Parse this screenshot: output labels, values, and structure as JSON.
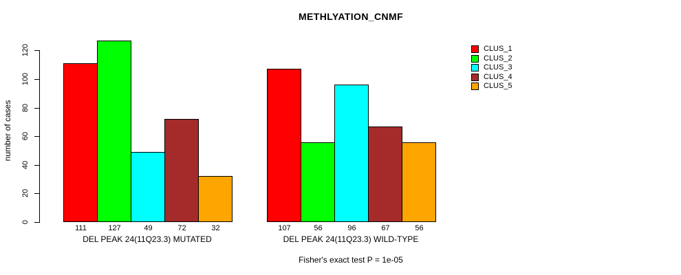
{
  "title": "METHLYATION_CNMF",
  "y_axis": {
    "label": "number of cases",
    "ticks": [
      0,
      20,
      40,
      60,
      80,
      100,
      120
    ]
  },
  "footer": "Fisher's exact test P = 1e-05",
  "legend": {
    "items": [
      {
        "label": "CLUS_1",
        "color": "#FF0000"
      },
      {
        "label": "CLUS_2",
        "color": "#00FF00"
      },
      {
        "label": "CLUS_3",
        "color": "#00FFFF"
      },
      {
        "label": "CLUS_4",
        "color": "#A52A2A"
      },
      {
        "label": "CLUS_5",
        "color": "#FFA500"
      }
    ]
  },
  "chart_data": {
    "type": "bar",
    "title": "METHLYATION_CNMF",
    "ylabel": "number of cases",
    "ylim": [
      0,
      127
    ],
    "yticks": [
      0,
      20,
      40,
      60,
      80,
      100,
      120
    ],
    "grid": false,
    "legend_position": "top-right",
    "bar_value_labels": true,
    "categories": [
      "DEL PEAK 24(11Q23.3) MUTATED",
      "DEL PEAK 24(11Q23.3) WILD-TYPE"
    ],
    "series": [
      {
        "name": "CLUS_1",
        "color": "#FF0000",
        "values": [
          111,
          107
        ]
      },
      {
        "name": "CLUS_2",
        "color": "#00FF00",
        "values": [
          127,
          56
        ]
      },
      {
        "name": "CLUS_3",
        "color": "#00FFFF",
        "values": [
          49,
          96
        ]
      },
      {
        "name": "CLUS_4",
        "color": "#A52A2A",
        "values": [
          72,
          67
        ]
      },
      {
        "name": "CLUS_5",
        "color": "#FFA500",
        "values": [
          32,
          56
        ]
      }
    ],
    "annotation": "Fisher's exact test P = 1e-05"
  }
}
